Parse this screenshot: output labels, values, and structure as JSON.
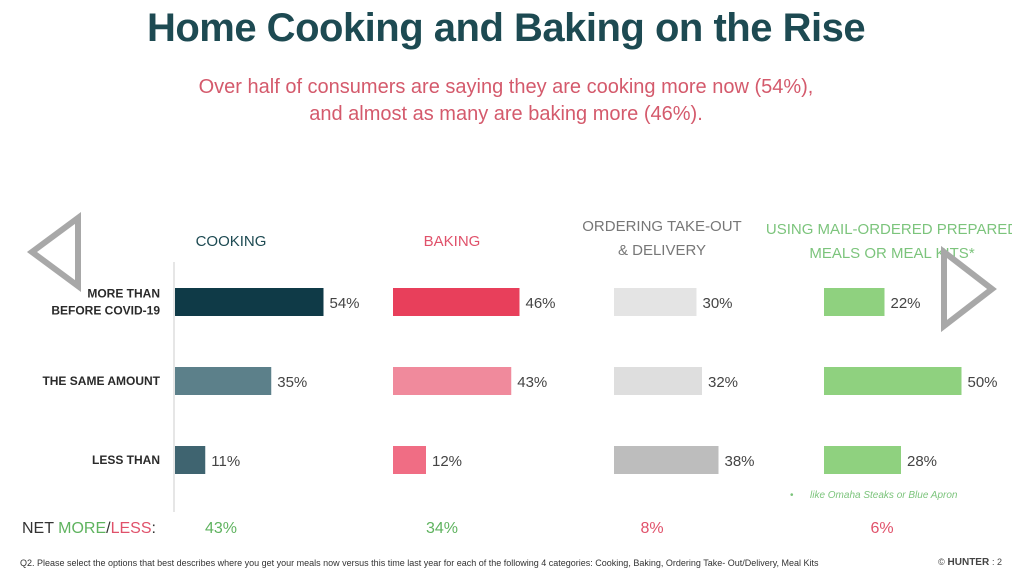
{
  "header": {
    "title": "Home Cooking and Baking on the Rise",
    "subtitle_line1": "Over half of consumers are saying they are cooking more now (54%),",
    "subtitle_line2": "and almost as many are baking more (46%)."
  },
  "chart_data": {
    "type": "bar",
    "orientation": "horizontal",
    "categories": [
      "MORE THAN BEFORE COVID-19",
      "THE SAME AMOUNT",
      "LESS THAN"
    ],
    "category_lines": [
      [
        "MORE THAN",
        "BEFORE COVID-19"
      ],
      [
        "THE SAME AMOUNT"
      ],
      [
        "LESS THAN"
      ]
    ],
    "series": [
      {
        "name": "COOKING",
        "title_lines": [
          "COOKING"
        ],
        "title_color": "#1d4a52",
        "colors": [
          "#0f3a47",
          "#5c808a",
          "#3f6470"
        ],
        "values": [
          54,
          35,
          11
        ],
        "labels": [
          "54%",
          "35%",
          "11%"
        ],
        "net": "43%",
        "net_color": "#5fb35f"
      },
      {
        "name": "BAKING",
        "title_lines": [
          "BAKING"
        ],
        "title_color": "#e0516a",
        "colors": [
          "#e83f5b",
          "#f08a9c",
          "#f06d84"
        ],
        "values": [
          46,
          43,
          12
        ],
        "labels": [
          "46%",
          "43%",
          "12%"
        ],
        "net": "34%",
        "net_color": "#5fb35f"
      },
      {
        "name": "ORDERING TAKE-OUT & DELIVERY",
        "title_lines": [
          "ORDERING TAKE-OUT",
          "& DELIVERY"
        ],
        "title_color": "#777777",
        "colors": [
          "#e4e4e4",
          "#dedede",
          "#bdbdbd"
        ],
        "values": [
          30,
          32,
          38
        ],
        "labels": [
          "30%",
          "32%",
          "38%"
        ],
        "net": "8%",
        "net_color": "#e0516a"
      },
      {
        "name": "USING MAIL-ORDERED PREPARED MEALS OR MEAL KITS*",
        "title_lines": [
          "USING MAIL-ORDERED PREPARED",
          "MEALS OR  MEAL KITS*"
        ],
        "title_color": "#7cc47c",
        "colors": [
          "#8fd17f",
          "#8fd17f",
          "#8fd17f"
        ],
        "values": [
          22,
          50,
          28
        ],
        "labels": [
          "22%",
          "50%",
          "28%"
        ],
        "net": "6%",
        "net_color": "#e0516a"
      }
    ],
    "net_label": {
      "prefix": "NET ",
      "more": "MORE",
      "slash": "/",
      "less": "LESS",
      "suffix": ":"
    },
    "annotation": "like Omaha Steaks or Blue Apron",
    "annotation_bullet": "•",
    "label_color": "#444444",
    "grid": false
  },
  "footer": {
    "question": "Q2. Please select the options that best describes where you get your meals now versus this time last year for each of the following 4 categories: Cooking, Baking, Ordering Take- Out/Delivery, Meal Kits",
    "logo_symbol": "©",
    "logo_text": "HUNTER",
    "logo_suffix": ": 2"
  }
}
